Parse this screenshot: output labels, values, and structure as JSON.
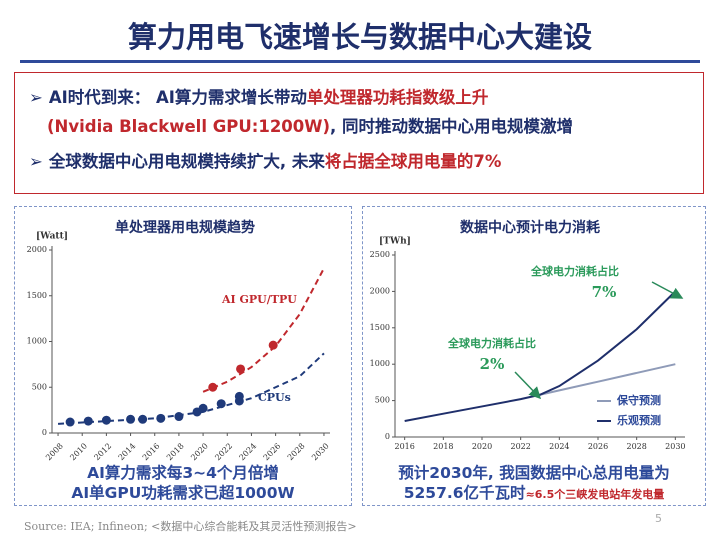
{
  "title": "算力用电飞速增长与数据中心大建设",
  "bullets": [
    {
      "segments": [
        {
          "text": "AI时代到来： AI算力需求增长带动",
          "color": "#1f2f6b"
        },
        {
          "text": "单处理器功耗指数级上升",
          "color": "#c0282d"
        },
        {
          "text": "(Nvidia Blackwell GPU:1200W)",
          "color": "#c0282d",
          "newline": true
        },
        {
          "text": ", 同时推动数据中心用电规模激增",
          "color": "#1f2f6b"
        }
      ]
    },
    {
      "segments": [
        {
          "text": "全球数据中心用电规模持续扩大, 未来",
          "color": "#1f2f6b"
        },
        {
          "text": "将占据全球用电量的7%",
          "color": "#c0282d"
        }
      ]
    }
  ],
  "chart_data": [
    {
      "type": "scatter",
      "title": "单处理器用电规模趋势",
      "y_unit": "[Watt]",
      "xlim": [
        2007.5,
        2030.5
      ],
      "xticks": [
        2008,
        2010,
        2012,
        2014,
        2016,
        2018,
        2020,
        2022,
        2024,
        2026,
        2028,
        2030
      ],
      "ylim": [
        0,
        2000
      ],
      "yticks": [
        0,
        500,
        1000,
        1500,
        2000
      ],
      "series": [
        {
          "name": "AI GPU/TPU",
          "color": "#c0282d",
          "mode": "markers",
          "x": [
            2020.8,
            2023.1,
            2025.8
          ],
          "values": [
            500,
            700,
            960
          ]
        },
        {
          "name": "CPUs",
          "color": "#1f3a7a",
          "mode": "markers",
          "x": [
            2009,
            2010.5,
            2012,
            2014,
            2015,
            2016.5,
            2018,
            2019.5,
            2020,
            2021.5,
            2023,
            2023
          ],
          "values": [
            120,
            130,
            140,
            150,
            150,
            160,
            180,
            230,
            270,
            320,
            350,
            400
          ]
        },
        {
          "color": "#c0282d",
          "mode": "dashed",
          "x": [
            2020,
            2022,
            2024,
            2026,
            2028,
            2030
          ],
          "values": [
            450,
            560,
            720,
            950,
            1300,
            1800
          ]
        },
        {
          "color": "#1f3a7a",
          "mode": "dashed",
          "x": [
            2008,
            2012,
            2016,
            2020,
            2024,
            2028,
            2030
          ],
          "values": [
            100,
            130,
            160,
            230,
            380,
            620,
            870
          ]
        }
      ]
    },
    {
      "type": "line",
      "title": "数据中心预计电力消耗",
      "y_unit": "[TWh]",
      "xlim": [
        2015.5,
        2030.5
      ],
      "xticks": [
        2016,
        2018,
        2020,
        2022,
        2024,
        2026,
        2028,
        2030
      ],
      "ylim": [
        0,
        2500
      ],
      "yticks": [
        0,
        500,
        1000,
        1500,
        2000,
        2500
      ],
      "legend": "lower right",
      "series": [
        {
          "name": "保守预测",
          "color": "#8f9bb8",
          "x": [
            2016,
            2018,
            2020,
            2022,
            2023,
            2024,
            2026,
            2028,
            2030
          ],
          "values": [
            null,
            null,
            null,
            null,
            580,
            640,
            760,
            880,
            1000
          ]
        },
        {
          "name": "乐观预测",
          "color": "#1f2f6b",
          "x": [
            2016,
            2018,
            2020,
            2022,
            2023,
            2024,
            2026,
            2028,
            2030
          ],
          "values": [
            220,
            320,
            420,
            520,
            580,
            700,
            1050,
            1480,
            2000
          ]
        }
      ],
      "annotations": [
        {
          "label": "全球电力消耗占比",
          "value": "7%"
        },
        {
          "label": "全球电力消耗占比",
          "value": "2%"
        }
      ]
    }
  ],
  "captions": [
    [
      "AI算力需求每3~4个月倍增",
      "AI单GPU功耗需求已超1000W"
    ],
    [
      "预计2030年, 我国数据中心总用电量为",
      "5257.6亿千瓦时",
      "≈6.5个三峡发电站年发电量"
    ]
  ],
  "source": "Source: IEA; Infineon; <数据中心综合能耗及其灵活性预测报告>",
  "page_number": "5"
}
